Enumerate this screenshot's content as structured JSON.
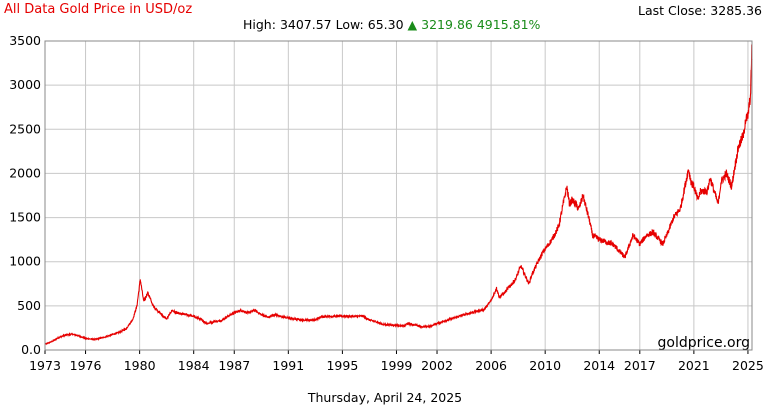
{
  "header": {
    "title": "All Data Gold Price in USD/oz",
    "high_label": "High:",
    "high_value": "3407.57",
    "low_label": "Low:",
    "low_value": "65.30",
    "change_arrow": "▲",
    "change_value": "3219.86",
    "change_pct": "4915.81%",
    "last_close_label": "Last Close:",
    "last_close_value": "3285.36"
  },
  "footer": {
    "date": "Thursday, April 24, 2025"
  },
  "watermark": "goldprice.org",
  "colors": {
    "line": "#e60000",
    "up": "#1a8c1a",
    "grid": "#c8c8c8",
    "title": "#e60000"
  },
  "chart_data": {
    "type": "line",
    "title": "All Data Gold Price in USD/oz",
    "xlabel": "",
    "ylabel": "",
    "xlim": [
      1973,
      2025.3
    ],
    "ylim": [
      0,
      3500
    ],
    "grid": true,
    "x_ticks": [
      "1973",
      "1976",
      "1980",
      "1984",
      "1987",
      "1991",
      "1995",
      "1999",
      "2002",
      "2006",
      "2010",
      "2014",
      "2017",
      "2021",
      "2025"
    ],
    "y_ticks": [
      "0.0",
      "500",
      "1000",
      "1500",
      "2000",
      "2500",
      "3000",
      "3500"
    ],
    "series": [
      {
        "x": [
          1973.0,
          1973.5,
          1974.0,
          1974.5,
          1975.0,
          1975.5,
          1976.0,
          1976.7,
          1977.5,
          1978.5,
          1979.0,
          1979.5,
          1979.8,
          1980.05,
          1980.3,
          1980.6,
          1981.0,
          1981.5,
          1982.0,
          1982.4,
          1982.7,
          1983.0,
          1983.5,
          1984.0,
          1984.5,
          1985.0,
          1985.5,
          1986.0,
          1986.5,
          1987.0,
          1987.5,
          1988.0,
          1988.5,
          1989.0,
          1989.5,
          1990.0,
          1990.5,
          1991.0,
          1992.0,
          1993.0,
          1993.5,
          1994.0,
          1995.0,
          1996.0,
          1996.5,
          1997.0,
          1997.5,
          1998.0,
          1999.0,
          1999.6,
          1999.8,
          2000.5,
          2001.0,
          2001.5,
          2002.0,
          2003.0,
          2004.0,
          2005.0,
          2005.5,
          2006.0,
          2006.4,
          2006.6,
          2007.0,
          2007.8,
          2008.2,
          2008.8,
          2009.0,
          2009.8,
          2010.5,
          2011.0,
          2011.6,
          2011.8,
          2012.0,
          2012.5,
          2012.8,
          2013.3,
          2013.5,
          2014.0,
          2015.0,
          2015.9,
          2016.5,
          2017.0,
          2017.5,
          2018.0,
          2018.7,
          2019.0,
          2019.5,
          2020.0,
          2020.6,
          2020.8,
          2021.0,
          2021.3,
          2021.5,
          2022.0,
          2022.2,
          2022.8,
          2023.0,
          2023.4,
          2023.8,
          2024.0,
          2024.3,
          2024.7,
          2024.8,
          2025.0,
          2025.2,
          2025.28,
          2025.31
        ],
        "values": [
          65,
          95,
          140,
          170,
          180,
          160,
          130,
          120,
          150,
          200,
          240,
          350,
          500,
          800,
          550,
          650,
          500,
          420,
          350,
          450,
          420,
          410,
          400,
          380,
          350,
          300,
          320,
          330,
          380,
          420,
          450,
          420,
          450,
          400,
          370,
          400,
          380,
          360,
          340,
          340,
          380,
          380,
          385,
          380,
          385,
          340,
          320,
          290,
          280,
          270,
          300,
          280,
          260,
          270,
          300,
          350,
          400,
          440,
          460,
          560,
          700,
          600,
          650,
          800,
          950,
          750,
          850,
          1100,
          1250,
          1400,
          1850,
          1650,
          1700,
          1600,
          1750,
          1450,
          1300,
          1250,
          1200,
          1050,
          1300,
          1200,
          1300,
          1330,
          1200,
          1300,
          1500,
          1600,
          2050,
          1900,
          1850,
          1700,
          1800,
          1800,
          1950,
          1650,
          1900,
          2000,
          1850,
          2050,
          2300,
          2450,
          2600,
          2650,
          2900,
          3400,
          3285
        ]
      }
    ]
  }
}
